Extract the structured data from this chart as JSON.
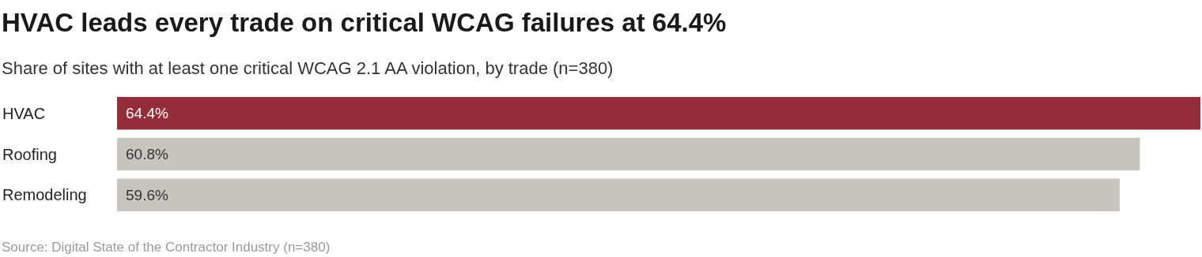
{
  "chart_data": {
    "type": "bar",
    "orientation": "horizontal",
    "title": "HVAC leads every trade on critical WCAG failures at 64.4%",
    "subtitle": "Share of sites with at least one critical WCAG 2.1 AA violation, by trade (n=380)",
    "categories": [
      "HVAC",
      "Roofing",
      "Remodeling"
    ],
    "values": [
      64.4,
      60.8,
      59.6
    ],
    "value_labels": [
      "64.4%",
      "60.8%",
      "59.6%"
    ],
    "colors": [
      "#962d3b",
      "#c8c5bf",
      "#c8c5bf"
    ],
    "annotations": [
      "Source: Digital State of the Contractor Industry (n=380)"
    ]
  }
}
